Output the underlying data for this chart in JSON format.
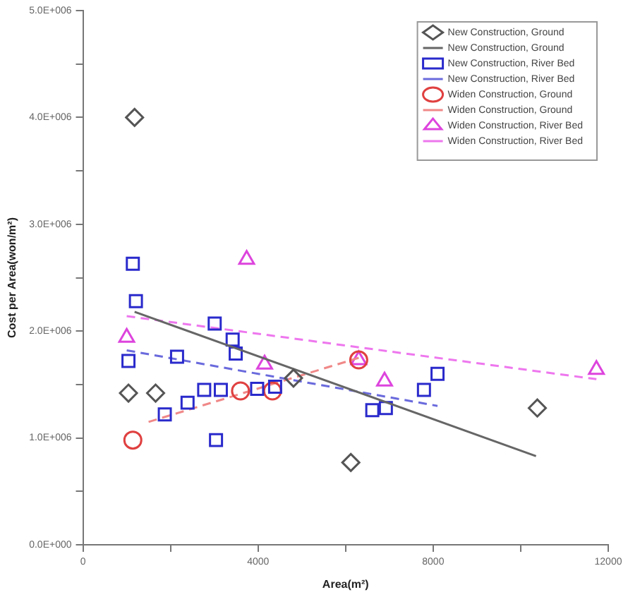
{
  "chart_data": {
    "type": "scatter",
    "xlabel": "Area(m²)",
    "ylabel": "Cost per Area(won/m²)",
    "xlim": [
      0,
      12000
    ],
    "xticks": [
      0,
      {
        "value": 2000,
        "label": null
      },
      4000,
      {
        "value": 6000,
        "label": null
      },
      8000,
      {
        "value": 10000,
        "label": null
      },
      12000
    ],
    "ylim": [
      0,
      5000000
    ],
    "yticks": [
      {
        "value": 0,
        "label": "0.0E+000"
      },
      {
        "value": 500000,
        "label": null
      },
      {
        "value": 1000000,
        "label": "1.0E+006"
      },
      {
        "value": 1500000,
        "label": null
      },
      {
        "value": 2000000,
        "label": "2.0E+006"
      },
      {
        "value": 2500000,
        "label": null
      },
      {
        "value": 3000000,
        "label": "3.0E+006"
      },
      {
        "value": 3500000,
        "label": null
      },
      {
        "value": 4000000,
        "label": "4.0E+006"
      },
      {
        "value": 4500000,
        "label": null
      },
      {
        "value": 5000000,
        "label": "5.0E+006"
      }
    ],
    "grid": false,
    "legend": "top right",
    "series": [
      {
        "name": "New Construction, Ground",
        "marker": "diamond",
        "color": "#555555",
        "x": [
          1040,
          1660,
          1180,
          4810,
          6120,
          10380
        ],
        "values": [
          1420000,
          1420000,
          4000000,
          1560000,
          770000,
          1280000
        ]
      },
      {
        "name": "New Construction, Ground",
        "type": "line",
        "marker": "none",
        "line_style": "solid",
        "color": "#666666",
        "x": [
          1180,
          10350
        ],
        "values": [
          2180000,
          830000
        ]
      },
      {
        "name": "New Construction, River Bed",
        "marker": "square",
        "color": "#2a2acc",
        "x": [
          1140,
          1210,
          1040,
          2150,
          1870,
          2390,
          2770,
          3150,
          3010,
          3420,
          3490,
          3040,
          3980,
          4390,
          6610,
          6920,
          7790,
          8100
        ],
        "values": [
          2630000,
          2280000,
          1720000,
          1760000,
          1220000,
          1330000,
          1450000,
          1450000,
          2070000,
          1920000,
          1790000,
          980000,
          1460000,
          1480000,
          1260000,
          1280000,
          1450000,
          1600000
        ]
      },
      {
        "name": "New Construction, River Bed",
        "type": "line",
        "marker": "none",
        "line_style": "dashed",
        "color": "#6a6add",
        "x": [
          1000,
          8100
        ],
        "values": [
          1820000,
          1300000
        ]
      },
      {
        "name": "Widen Construction, Ground",
        "marker": "circle",
        "color": "#e04040",
        "x": [
          1140,
          3600,
          4330,
          6300
        ],
        "values": [
          980000,
          1440000,
          1440000,
          1730000
        ]
      },
      {
        "name": "Widen Construction, Ground",
        "type": "line",
        "marker": "none",
        "line_style": "dashed",
        "color": "#f08888",
        "x": [
          1500,
          6300
        ],
        "values": [
          1150000,
          1750000
        ]
      },
      {
        "name": "Widen Construction, River Bed",
        "marker": "triangle",
        "color": "#dd44dd",
        "x": [
          1000,
          3740,
          4150,
          6300,
          6890,
          11730
        ],
        "values": [
          1940000,
          2670000,
          1690000,
          1730000,
          1530000,
          1640000
        ]
      },
      {
        "name": "Widen Construction, River Bed",
        "type": "line",
        "marker": "none",
        "line_style": "dashed",
        "color": "#ee77ee",
        "x": [
          1000,
          11730
        ],
        "values": [
          2140000,
          1550000
        ]
      }
    ]
  }
}
